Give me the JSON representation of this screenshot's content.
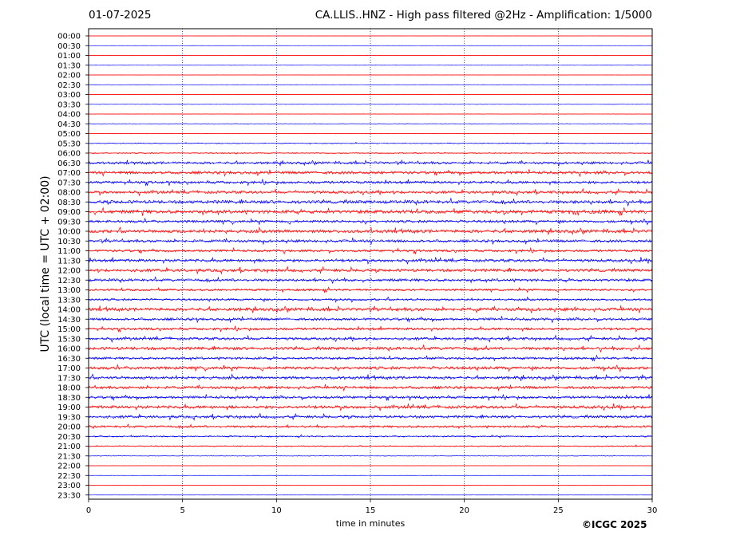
{
  "header": {
    "date": "01-07-2025",
    "title": "CA.LLIS..HNZ - High pass filtered @2Hz - Amplification: 1/5000"
  },
  "footer": {
    "copyright": "©ICGC 2025"
  },
  "colors": {
    "trace_a": "#ff0000",
    "trace_b": "#0000ff",
    "grid": "#000080",
    "axis": "#000000"
  },
  "chart_data": {
    "type": "line",
    "xlabel": "time in minutes",
    "ylabel": "UTC (local time = UTC + 02:00)",
    "xlim": [
      0,
      30
    ],
    "xticks": [
      0,
      5,
      10,
      15,
      20,
      25,
      30
    ],
    "grid": "vertical dotted at each x tick",
    "rows": [
      "00:00",
      "00:30",
      "01:00",
      "01:30",
      "02:00",
      "02:30",
      "03:00",
      "03:30",
      "04:00",
      "04:30",
      "05:00",
      "05:30",
      "06:00",
      "06:30",
      "07:00",
      "07:30",
      "08:00",
      "08:30",
      "09:00",
      "09:30",
      "10:00",
      "10:30",
      "11:00",
      "11:30",
      "12:00",
      "12:30",
      "13:00",
      "13:30",
      "14:00",
      "14:30",
      "15:00",
      "15:30",
      "16:00",
      "16:30",
      "17:00",
      "17:30",
      "18:00",
      "18:30",
      "19:00",
      "19:30",
      "20:00",
      "20:30",
      "21:00",
      "21:30",
      "22:00",
      "22:30",
      "23:00",
      "23:30"
    ],
    "row_colors": [
      "trace_a",
      "trace_b"
    ],
    "activity": [
      0.02,
      0.02,
      0.02,
      0.03,
      0.03,
      0.04,
      0.05,
      0.05,
      0.06,
      0.08,
      0.1,
      0.15,
      0.2,
      0.45,
      0.55,
      0.5,
      0.5,
      0.6,
      0.65,
      0.5,
      0.6,
      0.5,
      0.45,
      0.55,
      0.55,
      0.5,
      0.4,
      0.4,
      0.6,
      0.5,
      0.45,
      0.5,
      0.55,
      0.45,
      0.55,
      0.55,
      0.5,
      0.5,
      0.55,
      0.5,
      0.4,
      0.25,
      0.2,
      0.08,
      0.04,
      0.03,
      0.02,
      0.02
    ]
  }
}
